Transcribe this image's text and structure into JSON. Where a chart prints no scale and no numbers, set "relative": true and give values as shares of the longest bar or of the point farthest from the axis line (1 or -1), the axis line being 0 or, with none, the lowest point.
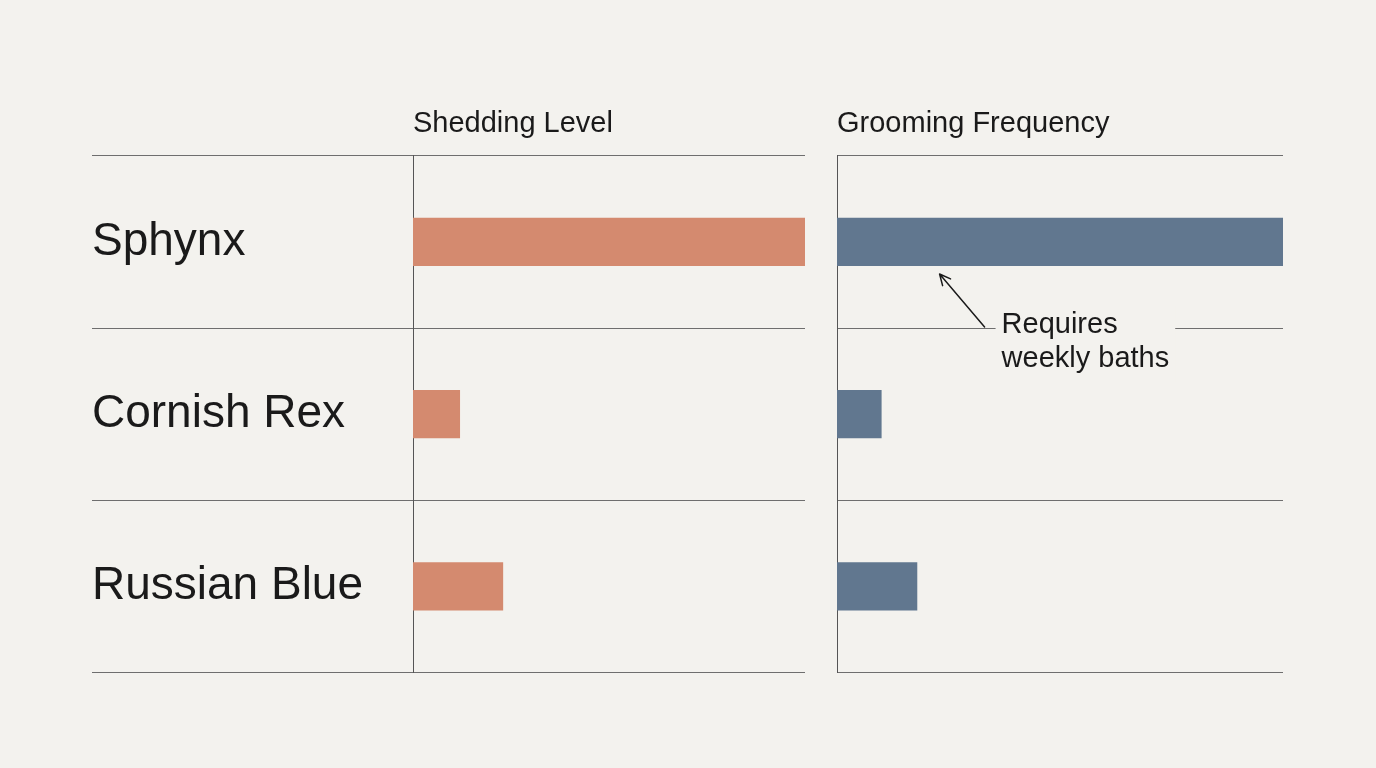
{
  "chart_data": [
    {
      "type": "bar",
      "orientation": "horizontal",
      "relative": true,
      "title": "Shedding Level",
      "categories": [
        "Sphynx",
        "Cornish Rex",
        "Russian Blue"
      ],
      "values": [
        1,
        0.12,
        0.23
      ],
      "color": "#d48a6f",
      "grid": "y",
      "tick_labels": "y"
    },
    {
      "type": "bar",
      "orientation": "horizontal",
      "relative": true,
      "title": "Grooming Frequency",
      "categories": [
        null,
        null,
        null
      ],
      "values": [
        1,
        0.1,
        0.18
      ],
      "color": "#61778f",
      "grid": "y",
      "annotations": [
        "Requires weekly baths"
      ]
    }
  ]
}
